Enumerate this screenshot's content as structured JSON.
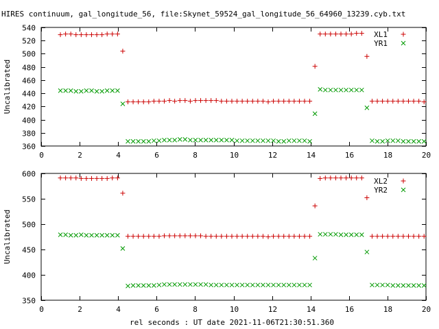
{
  "title": "HIRES continuum, gal_longitude_56, file:Skynet_59524_gal_longitude_56_64960_13239.cyb.txt",
  "xlabel": "rel seconds : UT date 2021-11-06T21:30:51.360",
  "colors": {
    "left": "#cc0000",
    "right": "#009900"
  },
  "chart_data": [
    {
      "type": "scatter",
      "ylabel": "Uncalibrated",
      "xlim": [
        0,
        20
      ],
      "ylim": [
        360,
        540
      ],
      "xticks": [
        0,
        2,
        4,
        6,
        8,
        10,
        12,
        14,
        16,
        18,
        20
      ],
      "yticks": [
        360,
        380,
        400,
        420,
        440,
        460,
        480,
        500,
        520,
        540
      ],
      "legend": "top-right",
      "x": [
        1.0,
        1.27,
        1.54,
        1.81,
        2.08,
        2.35,
        2.62,
        2.89,
        3.16,
        3.43,
        3.7,
        3.97,
        4.24,
        4.51,
        4.78,
        5.05,
        5.32,
        5.59,
        5.86,
        6.13,
        6.4,
        6.67,
        6.94,
        7.21,
        7.48,
        7.75,
        8.02,
        8.29,
        8.56,
        8.83,
        9.1,
        9.37,
        9.64,
        9.91,
        10.18,
        10.45,
        10.72,
        10.99,
        11.26,
        11.53,
        11.8,
        12.07,
        12.34,
        12.61,
        12.88,
        13.15,
        13.42,
        13.69,
        13.96,
        14.23,
        14.5,
        14.77,
        15.04,
        15.31,
        15.58,
        15.85,
        16.12,
        16.39,
        16.66,
        16.93,
        17.2,
        17.47,
        17.74,
        18.01,
        18.28,
        18.55,
        18.82,
        19.09,
        19.36,
        19.63,
        19.9
      ],
      "series": [
        {
          "name": "XL1",
          "marker": "plus",
          "values": [
            529,
            530,
            530,
            529,
            529,
            529,
            529,
            529,
            529,
            530,
            530,
            530,
            504,
            427,
            427,
            427,
            427,
            427,
            428,
            428,
            428,
            429,
            428,
            429,
            429,
            428,
            429,
            429,
            429,
            429,
            429,
            428,
            428,
            428,
            428,
            428,
            428,
            428,
            428,
            428,
            427,
            428,
            428,
            428,
            428,
            428,
            428,
            428,
            428,
            481,
            530,
            530,
            530,
            530,
            530,
            530,
            530,
            531,
            531,
            496,
            428,
            428,
            428,
            428,
            428,
            428,
            428,
            428,
            428,
            428,
            427
          ]
        },
        {
          "name": "YR1",
          "marker": "cross",
          "values": [
            444,
            444,
            444,
            443,
            443,
            444,
            444,
            443,
            443,
            444,
            444,
            444,
            424,
            367,
            367,
            367,
            367,
            367,
            368,
            368,
            369,
            369,
            369,
            370,
            370,
            369,
            369,
            369,
            369,
            369,
            369,
            369,
            369,
            369,
            368,
            368,
            368,
            368,
            368,
            368,
            368,
            368,
            367,
            367,
            368,
            368,
            368,
            368,
            367,
            409,
            446,
            445,
            445,
            445,
            445,
            445,
            445,
            445,
            445,
            418,
            368,
            367,
            367,
            368,
            368,
            368,
            367,
            367,
            367,
            367,
            367
          ]
        }
      ]
    },
    {
      "type": "scatter",
      "ylabel": "Uncalibrated",
      "xlim": [
        0,
        20
      ],
      "ylim": [
        350,
        600
      ],
      "xticks": [
        0,
        2,
        4,
        6,
        8,
        10,
        12,
        14,
        16,
        18,
        20
      ],
      "yticks": [
        350,
        400,
        450,
        500,
        550,
        600
      ],
      "legend": "top-right",
      "x": [
        1.0,
        1.27,
        1.54,
        1.81,
        2.08,
        2.35,
        2.62,
        2.89,
        3.16,
        3.43,
        3.7,
        3.97,
        4.24,
        4.51,
        4.78,
        5.05,
        5.32,
        5.59,
        5.86,
        6.13,
        6.4,
        6.67,
        6.94,
        7.21,
        7.48,
        7.75,
        8.02,
        8.29,
        8.56,
        8.83,
        9.1,
        9.37,
        9.64,
        9.91,
        10.18,
        10.45,
        10.72,
        10.99,
        11.26,
        11.53,
        11.8,
        12.07,
        12.34,
        12.61,
        12.88,
        13.15,
        13.42,
        13.69,
        13.96,
        14.23,
        14.5,
        14.77,
        15.04,
        15.31,
        15.58,
        15.85,
        16.12,
        16.39,
        16.66,
        16.93,
        17.2,
        17.47,
        17.74,
        18.01,
        18.28,
        18.55,
        18.82,
        19.09,
        19.36,
        19.63,
        19.9
      ],
      "series": [
        {
          "name": "XL2",
          "marker": "plus",
          "values": [
            591,
            591,
            591,
            591,
            590,
            590,
            590,
            590,
            590,
            590,
            591,
            591,
            561,
            476,
            476,
            476,
            476,
            476,
            476,
            476,
            477,
            477,
            477,
            477,
            477,
            477,
            477,
            477,
            476,
            476,
            476,
            476,
            476,
            476,
            476,
            476,
            476,
            476,
            476,
            476,
            475,
            476,
            476,
            476,
            476,
            476,
            476,
            476,
            476,
            536,
            590,
            591,
            591,
            591,
            591,
            591,
            591,
            591,
            591,
            552,
            476,
            476,
            476,
            476,
            476,
            476,
            476,
            476,
            476,
            476,
            476
          ]
        },
        {
          "name": "YR2",
          "marker": "cross",
          "values": [
            479,
            479,
            478,
            478,
            479,
            478,
            478,
            478,
            478,
            478,
            478,
            478,
            452,
            378,
            379,
            379,
            379,
            379,
            379,
            380,
            381,
            381,
            381,
            381,
            381,
            381,
            381,
            381,
            381,
            380,
            380,
            380,
            380,
            380,
            380,
            380,
            380,
            380,
            380,
            380,
            380,
            380,
            380,
            380,
            380,
            380,
            380,
            380,
            380,
            433,
            480,
            480,
            480,
            480,
            479,
            479,
            479,
            479,
            479,
            445,
            380,
            380,
            380,
            380,
            379,
            379,
            379,
            379,
            379,
            379,
            379
          ]
        }
      ]
    }
  ]
}
